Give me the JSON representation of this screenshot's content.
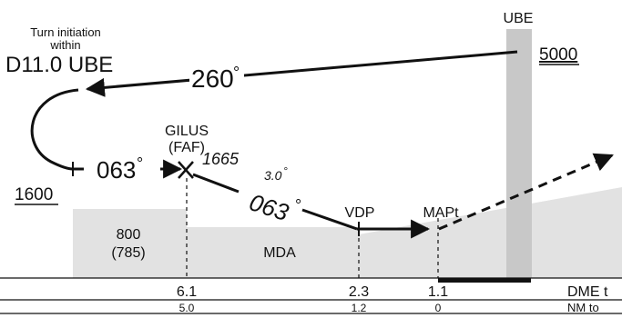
{
  "plan": {
    "turn_note_line1": "Turn initiation",
    "turn_note_line2": "within",
    "turn_note_line3": "D11.0 UBE",
    "outbound_course": "260",
    "procedure_turn_altitude": "1600",
    "inbound_course": "063",
    "final_course": "063",
    "glide_angle": "3.0",
    "faf_altitude": "1665",
    "station": "UBE",
    "station_altitude": "5000",
    "degree_symbol": "°"
  },
  "fixes": {
    "faf_name": "GILUS",
    "faf_tag": "(FAF)",
    "vdp": "VDP",
    "mapt": "MAPt"
  },
  "minima": {
    "altitude": "800",
    "height": "(785)",
    "label": "MDA"
  },
  "table": {
    "row1_label": "DME t",
    "row1_values": [
      "6.1",
      "2.3",
      "1.1"
    ],
    "row2_label": "NM to",
    "row2_values": [
      "5.0",
      "1.2",
      "0"
    ]
  },
  "colors": {
    "terrain": "#e2e2e2",
    "station_bar": "#c8c8c8",
    "line": "#111111"
  }
}
